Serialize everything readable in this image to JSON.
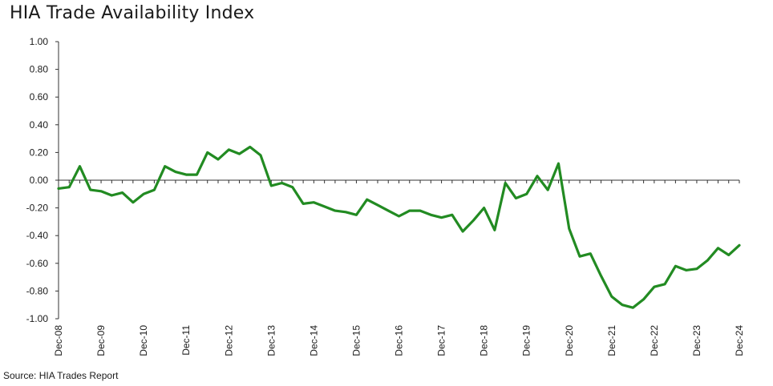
{
  "chart_data": {
    "type": "line",
    "title": "HIA Trade Availability Index",
    "source": "Source: HIA Trades Report",
    "ylim": [
      -1.0,
      1.0
    ],
    "yticks": [
      "1.00",
      "0.80",
      "0.60",
      "0.40",
      "0.20",
      "0.00",
      "-0.20",
      "-0.40",
      "-0.60",
      "-0.80",
      "-1.00"
    ],
    "ytick_values": [
      1.0,
      0.8,
      0.6,
      0.4,
      0.2,
      0.0,
      -0.2,
      -0.4,
      -0.6,
      -0.8,
      -1.0
    ],
    "xticks": [
      "Dec-08",
      "Dec-09",
      "Dec-10",
      "Dec-11",
      "Dec-12",
      "Dec-13",
      "Dec-14",
      "Dec-15",
      "Dec-16",
      "Dec-17",
      "Dec-18",
      "Dec-19",
      "Dec-20",
      "Dec-21",
      "Dec-22",
      "Dec-23",
      "Dec-24"
    ],
    "line_color": "#228b22",
    "series": [
      {
        "values": [
          -0.06,
          -0.05,
          0.1,
          -0.07,
          -0.08,
          -0.11,
          -0.09,
          -0.16,
          -0.1,
          -0.07,
          0.1,
          0.06,
          0.04,
          0.04,
          0.2,
          0.15,
          0.22,
          0.19,
          0.24,
          0.18,
          -0.04,
          -0.02,
          -0.05,
          -0.17,
          -0.16,
          -0.19,
          -0.22,
          -0.23,
          -0.25,
          -0.14,
          -0.18,
          -0.22,
          -0.26,
          -0.22,
          -0.22,
          -0.25,
          -0.27,
          -0.25,
          -0.37,
          -0.29,
          -0.2,
          -0.36,
          -0.02,
          -0.13,
          -0.1,
          0.03,
          -0.07,
          0.12,
          -0.35,
          -0.55,
          -0.53,
          -0.69,
          -0.84,
          -0.9,
          -0.92,
          -0.86,
          -0.77,
          -0.75,
          -0.62,
          -0.65,
          -0.64,
          -0.58,
          -0.49,
          -0.54,
          -0.47
        ]
      }
    ]
  }
}
